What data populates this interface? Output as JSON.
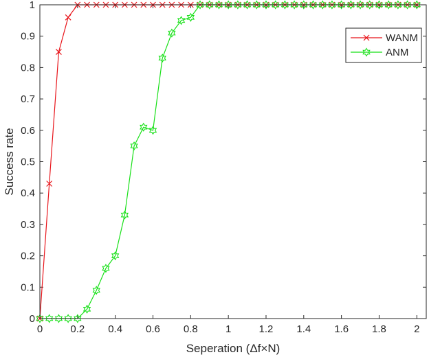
{
  "chart_data": {
    "type": "line",
    "title": "",
    "xlabel": "Seperation (Δf×N)",
    "ylabel": "Success rate",
    "xlim": [
      0,
      2.05
    ],
    "ylim": [
      0,
      1
    ],
    "xticks": [
      0,
      0.2,
      0.4,
      0.6,
      0.8,
      1,
      1.2,
      1.4,
      1.6,
      1.8,
      2
    ],
    "xtick_labels": [
      "0",
      "0.2",
      "0.4",
      "0.6",
      "0.8",
      "1",
      "1.2",
      "1.4",
      "1.6",
      "1.8",
      "2"
    ],
    "yticks": [
      0,
      0.1,
      0.2,
      0.3,
      0.4,
      0.5,
      0.6,
      0.7,
      0.8,
      0.9,
      1
    ],
    "ytick_labels": [
      "0",
      "0.1",
      "0.2",
      "0.3",
      "0.4",
      "0.5",
      "0.6",
      "0.7",
      "0.8",
      "0.9",
      "1"
    ],
    "grid": false,
    "legend_position": "top-right",
    "x": [
      0,
      0.05,
      0.1,
      0.15,
      0.2,
      0.25,
      0.3,
      0.35,
      0.4,
      0.45,
      0.5,
      0.55,
      0.6,
      0.65,
      0.7,
      0.75,
      0.8,
      0.85,
      0.9,
      0.95,
      1,
      1.05,
      1.1,
      1.15,
      1.2,
      1.25,
      1.3,
      1.35,
      1.4,
      1.45,
      1.5,
      1.55,
      1.6,
      1.65,
      1.7,
      1.75,
      1.8,
      1.85,
      1.9,
      1.95,
      2
    ],
    "series": [
      {
        "name": "WANM",
        "color": "#e8141a",
        "marker": "x",
        "values": [
          0,
          0.43,
          0.85,
          0.96,
          1,
          1,
          1,
          1,
          1,
          1,
          1,
          1,
          1,
          1,
          1,
          1,
          1,
          1,
          1,
          1,
          1,
          1,
          1,
          1,
          1,
          1,
          1,
          1,
          1,
          1,
          1,
          1,
          1,
          1,
          1,
          1,
          1,
          1,
          1,
          1,
          1
        ]
      },
      {
        "name": "ANM",
        "color": "#16e016",
        "marker": "hexagram",
        "values": [
          0,
          0,
          0,
          0,
          0,
          0.03,
          0.09,
          0.16,
          0.2,
          0.33,
          0.55,
          0.61,
          0.6,
          0.83,
          0.91,
          0.95,
          0.96,
          1,
          1,
          1,
          1,
          1,
          1,
          1,
          1,
          1,
          1,
          1,
          1,
          1,
          1,
          1,
          1,
          1,
          1,
          1,
          1,
          1,
          1,
          1,
          1
        ]
      }
    ]
  }
}
